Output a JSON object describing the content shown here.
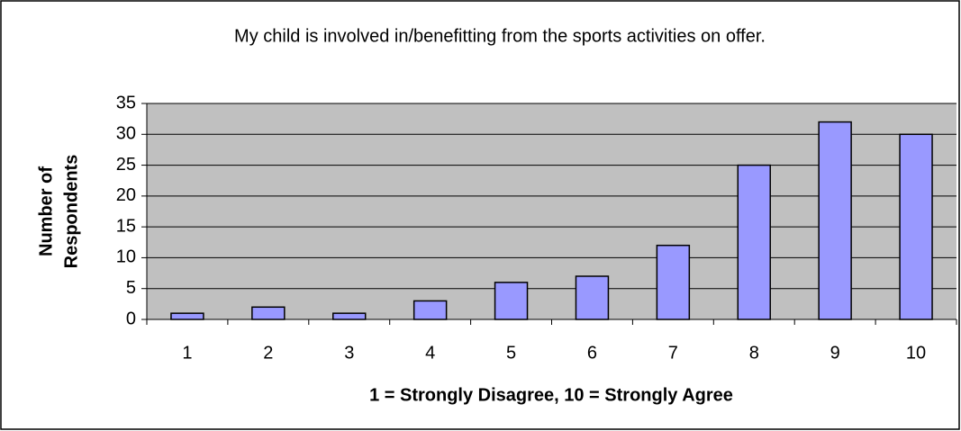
{
  "chart_data": {
    "type": "bar",
    "title": "My child is involved in/benefitting from the sports activities on offer.",
    "x_label": "1 = Strongly Disagree, 10 = Strongly Agree",
    "y_label": [
      "Number of",
      "Respondents"
    ],
    "categories": [
      "1",
      "2",
      "3",
      "4",
      "5",
      "6",
      "7",
      "8",
      "9",
      "10"
    ],
    "values": [
      1,
      2,
      1,
      3,
      6,
      7,
      12,
      25,
      32,
      30
    ],
    "color": "#9999ff",
    "ylim": [
      0,
      35
    ],
    "yticks": [
      0,
      5,
      10,
      15,
      20,
      25,
      30,
      35
    ],
    "grid": true
  }
}
